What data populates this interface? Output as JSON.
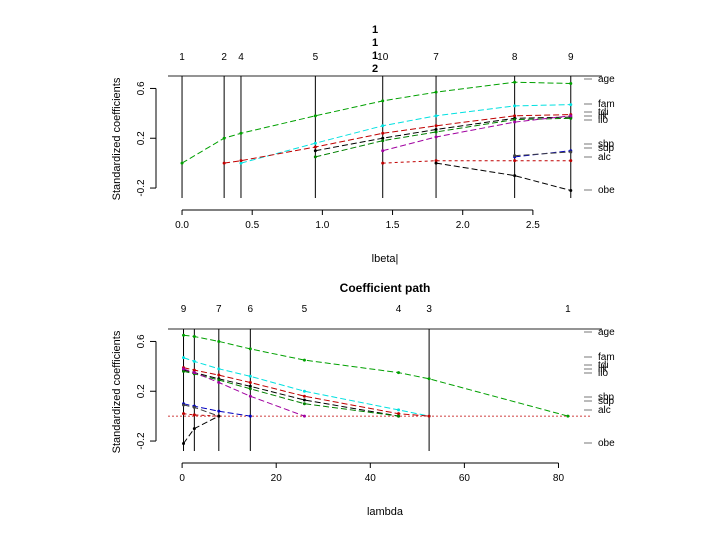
{
  "chart_data": [
    {
      "type": "line",
      "title": "",
      "xlabel": "lbeta|",
      "ylabel": "Standardized coefficients",
      "xlim": [
        -0.1,
        2.85
      ],
      "ylim": [
        -0.28,
        0.7
      ],
      "x_ticks": [
        0.0,
        0.5,
        1.0,
        1.5,
        2.0,
        2.5
      ],
      "x_tick_labels": [
        "0.0",
        "0.5",
        "1.0",
        "1.5",
        "2.0",
        "2.5"
      ],
      "y_ticks": [
        -0.2,
        0.2,
        0.6
      ],
      "y_tick_labels": [
        "-0.2",
        "0.2",
        "0.6"
      ],
      "step_lines": [
        0.0,
        0.3,
        0.42,
        0.95,
        1.43,
        1.81,
        2.37,
        2.77
      ],
      "step_labels": [
        {
          "x": 0.0,
          "text": "1"
        },
        {
          "x": 0.3,
          "text": "2"
        },
        {
          "x": 0.42,
          "text": "4"
        },
        {
          "x": 0.95,
          "text": "5"
        },
        {
          "x": 1.43,
          "text": "10"
        },
        {
          "x": 1.81,
          "text": "7"
        },
        {
          "x": 2.37,
          "text": "8"
        },
        {
          "x": 2.77,
          "text": "9"
        }
      ],
      "stacked_step_labels": [
        "1",
        "1",
        "1",
        "2"
      ],
      "x": [
        0.0,
        0.3,
        0.42,
        0.95,
        1.43,
        1.81,
        2.37,
        2.77
      ],
      "series": [
        {
          "name": "age",
          "label": "age",
          "color": "#00a000",
          "dash": "6,3",
          "values": [
            0.0,
            0.2,
            0.24,
            0.38,
            0.5,
            0.57,
            0.65,
            0.64
          ]
        },
        {
          "name": "fam",
          "label": "fam",
          "color": "#00e0e0",
          "dash": "6,3",
          "values": [
            null,
            null,
            0.0,
            0.16,
            0.3,
            0.38,
            0.46,
            0.47
          ]
        },
        {
          "name": "lik",
          "label": "lik",
          "color": "#c00000",
          "dash": "6,3",
          "values": [
            null,
            0.0,
            0.02,
            0.13,
            0.24,
            0.3,
            0.38,
            0.39
          ]
        },
        {
          "name": "liu",
          "label": "liu",
          "color": "#000000",
          "dash": "6,3",
          "values": [
            null,
            null,
            null,
            0.1,
            0.2,
            0.27,
            0.36,
            0.37
          ]
        },
        {
          "name": "lis",
          "label": "lis",
          "color": "#008000",
          "dash": "6,3",
          "values": [
            null,
            null,
            null,
            0.05,
            0.18,
            0.25,
            0.35,
            0.36
          ]
        },
        {
          "name": "lib",
          "label": "lib",
          "color": "#a000a0",
          "dash": "6,3",
          "values": [
            null,
            null,
            null,
            null,
            0.1,
            0.21,
            0.33,
            0.38
          ]
        },
        {
          "name": "sbp",
          "label": "sbp",
          "color": "#0000c0",
          "dash": "6,3",
          "values": [
            null,
            null,
            null,
            null,
            null,
            null,
            0.05,
            0.1
          ]
        },
        {
          "name": "sdp",
          "label": "sdp",
          "color": "#404040",
          "dash": "6,3",
          "values": [
            null,
            null,
            null,
            null,
            null,
            null,
            0.06,
            0.09
          ]
        },
        {
          "name": "alc",
          "label": "alc",
          "color": "#c00000",
          "dash": "3,3",
          "values": [
            null,
            null,
            null,
            null,
            0.0,
            0.02,
            0.02,
            0.02
          ]
        },
        {
          "name": "obe",
          "label": "obe",
          "color": "#000000",
          "dash": "6,3",
          "values": [
            null,
            null,
            null,
            null,
            null,
            0.0,
            -0.1,
            -0.22
          ]
        }
      ],
      "right_labels": [
        "age",
        "fam",
        "tdi",
        "lik",
        "lio",
        "sbp",
        "sdp",
        "alc",
        "obe"
      ]
    },
    {
      "type": "line",
      "title": "Coefficient path",
      "xlabel": "lambda",
      "ylabel": "Standardized coefficients",
      "xlim": [
        -3,
        85
      ],
      "ylim": [
        -0.28,
        0.7
      ],
      "x_ticks": [
        0,
        20,
        40,
        60,
        80
      ],
      "x_tick_labels": [
        "0",
        "20",
        "40",
        "60",
        "80"
      ],
      "y_ticks": [
        -0.2,
        0.2,
        0.6
      ],
      "y_tick_labels": [
        "-0.2",
        "0.2",
        "0.6"
      ],
      "step_lines": [
        0.3,
        2.6,
        7.8,
        14.5,
        52.5
      ],
      "step_labels": [
        {
          "x": 0.3,
          "text": "9"
        },
        {
          "x": 7.8,
          "text": "7"
        },
        {
          "x": 14.5,
          "text": "6"
        },
        {
          "x": 26,
          "text": "5"
        },
        {
          "x": 46,
          "text": "4"
        },
        {
          "x": 52.5,
          "text": "3"
        },
        {
          "x": 82,
          "text": "1"
        }
      ],
      "zero_line": 0,
      "x": [
        0.3,
        2.6,
        7.8,
        14.5,
        26,
        46,
        52.5,
        82
      ],
      "series": [
        {
          "name": "age",
          "label": "age",
          "color": "#00a000",
          "dash": "6,3",
          "values": [
            0.65,
            0.64,
            0.6,
            0.54,
            0.45,
            0.35,
            0.3,
            0.0
          ]
        },
        {
          "name": "fam",
          "label": "fam",
          "color": "#00e0e0",
          "dash": "6,3",
          "values": [
            0.47,
            0.44,
            0.38,
            0.32,
            0.2,
            0.05,
            0.0,
            null
          ]
        },
        {
          "name": "lik",
          "label": "lik",
          "color": "#c00000",
          "dash": "6,3",
          "values": [
            0.39,
            0.37,
            0.33,
            0.27,
            0.16,
            0.02,
            0.0,
            null
          ]
        },
        {
          "name": "liu",
          "label": "liu",
          "color": "#000000",
          "dash": "6,3",
          "values": [
            0.37,
            0.35,
            0.3,
            0.24,
            0.13,
            0.0,
            null,
            null
          ]
        },
        {
          "name": "lis",
          "label": "lis",
          "color": "#008000",
          "dash": "6,3",
          "values": [
            0.36,
            0.34,
            0.29,
            0.22,
            0.1,
            0.0,
            null,
            null
          ]
        },
        {
          "name": "lib",
          "label": "lib",
          "color": "#a000a0",
          "dash": "6,3",
          "values": [
            0.38,
            0.35,
            0.27,
            0.16,
            0.0,
            null,
            null,
            null
          ]
        },
        {
          "name": "sbp",
          "label": "sbp",
          "color": "#0000c0",
          "dash": "6,3",
          "values": [
            0.1,
            0.08,
            0.04,
            0.0,
            null,
            null,
            null,
            null
          ]
        },
        {
          "name": "sdp",
          "label": "sdp",
          "color": "#404040",
          "dash": "6,3",
          "values": [
            0.09,
            0.07,
            0.0,
            null,
            null,
            null,
            null,
            null
          ]
        },
        {
          "name": "alc",
          "label": "alc",
          "color": "#c00000",
          "dash": "3,3",
          "values": [
            0.02,
            0.01,
            0.0,
            null,
            null,
            null,
            null,
            null
          ]
        },
        {
          "name": "obe",
          "label": "obe",
          "color": "#000000",
          "dash": "6,3",
          "values": [
            -0.22,
            -0.1,
            0.0,
            null,
            null,
            null,
            null,
            null
          ]
        }
      ],
      "right_labels": [
        "age",
        "fam",
        "tdi",
        "lik",
        "lio",
        "sbp",
        "sdp",
        "alc",
        "obe"
      ]
    }
  ]
}
